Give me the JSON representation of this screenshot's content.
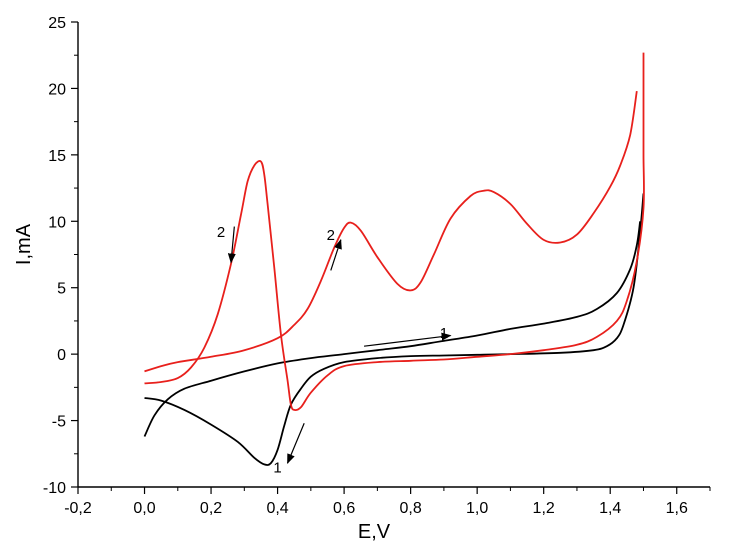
{
  "chart_data": {
    "type": "line",
    "xlabel": "E,V",
    "ylabel": "I,mA",
    "xlim": [
      -0.2,
      1.7
    ],
    "ylim": [
      -10,
      25
    ],
    "grid": false,
    "x_ticks": [
      -0.2,
      0.0,
      0.2,
      0.4,
      0.6,
      0.8,
      1.0,
      1.2,
      1.4,
      1.6
    ],
    "x_tick_labels": [
      "-0,2",
      "0,0",
      "0,2",
      "0,4",
      "0,6",
      "0,8",
      "1,0",
      "1,2",
      "1,4",
      "1,6"
    ],
    "y_ticks": [
      -10,
      -5,
      0,
      5,
      10,
      15,
      20,
      25
    ],
    "y_tick_labels": [
      "-10",
      "-5",
      "0",
      "5",
      "10",
      "15",
      "20",
      "25"
    ],
    "series": [
      {
        "name": "1",
        "color": "#000000",
        "segments": [
          [
            [
              0.0,
              -6.2
            ],
            [
              0.03,
              -4.6
            ],
            [
              0.07,
              -3.4
            ],
            [
              0.12,
              -2.6
            ],
            [
              0.2,
              -2.0
            ],
            [
              0.3,
              -1.3
            ],
            [
              0.4,
              -0.7
            ],
            [
              0.5,
              -0.3
            ],
            [
              0.6,
              0.0
            ],
            [
              0.7,
              0.3
            ],
            [
              0.8,
              0.6
            ],
            [
              0.9,
              1.0
            ],
            [
              1.0,
              1.4
            ],
            [
              1.1,
              1.9
            ],
            [
              1.2,
              2.3
            ],
            [
              1.3,
              2.8
            ],
            [
              1.36,
              3.4
            ],
            [
              1.42,
              4.6
            ],
            [
              1.46,
              6.4
            ],
            [
              1.48,
              8.2
            ],
            [
              1.49,
              10.0
            ]
          ],
          [
            [
              1.5,
              12.1
            ],
            [
              1.49,
              9.2
            ],
            [
              1.47,
              5.0
            ],
            [
              1.44,
              2.2
            ],
            [
              1.42,
              1.2
            ],
            [
              1.39,
              0.6
            ],
            [
              1.35,
              0.3
            ],
            [
              1.25,
              0.1
            ],
            [
              1.1,
              0.0
            ],
            [
              1.0,
              -0.05
            ],
            [
              0.9,
              -0.1
            ],
            [
              0.8,
              -0.15
            ],
            [
              0.7,
              -0.3
            ],
            [
              0.6,
              -0.6
            ],
            [
              0.54,
              -1.1
            ],
            [
              0.5,
              -1.7
            ],
            [
              0.47,
              -2.6
            ],
            [
              0.44,
              -3.8
            ],
            [
              0.42,
              -5.4
            ],
            [
              0.4,
              -7.2
            ],
            [
              0.38,
              -8.2
            ],
            [
              0.36,
              -8.3
            ],
            [
              0.33,
              -7.8
            ],
            [
              0.28,
              -6.6
            ],
            [
              0.2,
              -5.3
            ],
            [
              0.12,
              -4.2
            ],
            [
              0.05,
              -3.5
            ],
            [
              0.0,
              -3.3
            ]
          ]
        ]
      },
      {
        "name": "2",
        "color": "#e8201c",
        "segments": [
          [
            [
              0.0,
              -2.2
            ],
            [
              0.05,
              -2.1
            ],
            [
              0.1,
              -1.8
            ],
            [
              0.14,
              -1.0
            ],
            [
              0.18,
              0.5
            ],
            [
              0.22,
              3.0
            ],
            [
              0.26,
              6.8
            ],
            [
              0.29,
              10.5
            ],
            [
              0.31,
              13.0
            ],
            [
              0.33,
              14.2
            ],
            [
              0.35,
              14.5
            ],
            [
              0.36,
              13.5
            ],
            [
              0.37,
              11.3
            ],
            [
              0.39,
              6.5
            ],
            [
              0.41,
              1.5
            ],
            [
              0.43,
              -2.0
            ],
            [
              0.44,
              -3.8
            ],
            [
              0.45,
              -4.2
            ],
            [
              0.47,
              -4.0
            ],
            [
              0.5,
              -2.9
            ],
            [
              0.55,
              -1.6
            ],
            [
              0.6,
              -0.9
            ],
            [
              0.7,
              -0.6
            ],
            [
              0.8,
              -0.5
            ],
            [
              0.9,
              -0.4
            ],
            [
              1.0,
              -0.2
            ],
            [
              1.1,
              0.0
            ],
            [
              1.2,
              0.3
            ],
            [
              1.3,
              0.7
            ],
            [
              1.36,
              1.3
            ],
            [
              1.42,
              2.5
            ],
            [
              1.45,
              4.0
            ],
            [
              1.48,
              7.0
            ],
            [
              1.5,
              11.0
            ],
            [
              1.5,
              15.0
            ],
            [
              1.5,
              19.0
            ],
            [
              1.5,
              22.7
            ]
          ],
          [
            [
              1.48,
              19.8
            ],
            [
              1.46,
              16.5
            ],
            [
              1.43,
              14.2
            ],
            [
              1.4,
              12.6
            ],
            [
              1.35,
              10.6
            ],
            [
              1.3,
              9.0
            ],
            [
              1.25,
              8.4
            ],
            [
              1.2,
              8.6
            ],
            [
              1.15,
              9.8
            ],
            [
              1.1,
              11.3
            ],
            [
              1.05,
              12.2
            ],
            [
              1.02,
              12.3
            ],
            [
              0.98,
              11.9
            ],
            [
              0.92,
              10.2
            ],
            [
              0.87,
              7.5
            ],
            [
              0.83,
              5.4
            ],
            [
              0.8,
              4.8
            ],
            [
              0.76,
              5.3
            ],
            [
              0.7,
              7.3
            ],
            [
              0.65,
              9.3
            ],
            [
              0.62,
              9.9
            ],
            [
              0.6,
              9.5
            ],
            [
              0.57,
              8.0
            ],
            [
              0.53,
              5.5
            ],
            [
              0.49,
              3.4
            ],
            [
              0.45,
              2.2
            ],
            [
              0.4,
              1.2
            ],
            [
              0.3,
              0.3
            ],
            [
              0.2,
              -0.2
            ],
            [
              0.1,
              -0.6
            ],
            [
              0.05,
              -0.9
            ],
            [
              0.0,
              -1.3
            ]
          ]
        ]
      }
    ],
    "annotations": [
      {
        "text": "1",
        "x": 0.9,
        "y": 1.2,
        "arrow_from": [
          0.66,
          0.6
        ],
        "arrow_to": [
          0.92,
          1.4
        ]
      },
      {
        "text": "1",
        "x": 0.4,
        "y": -8.9,
        "arrow_from": [
          0.48,
          -5.2
        ],
        "arrow_to": [
          0.43,
          -8.2
        ]
      },
      {
        "text": "2",
        "x": 0.23,
        "y": 8.8,
        "arrow_from": [
          0.27,
          9.6
        ],
        "arrow_to": [
          0.26,
          6.9
        ]
      },
      {
        "text": "2",
        "x": 0.56,
        "y": 8.6,
        "arrow_from": [
          0.56,
          6.3
        ],
        "arrow_to": [
          0.59,
          8.6
        ]
      }
    ]
  }
}
